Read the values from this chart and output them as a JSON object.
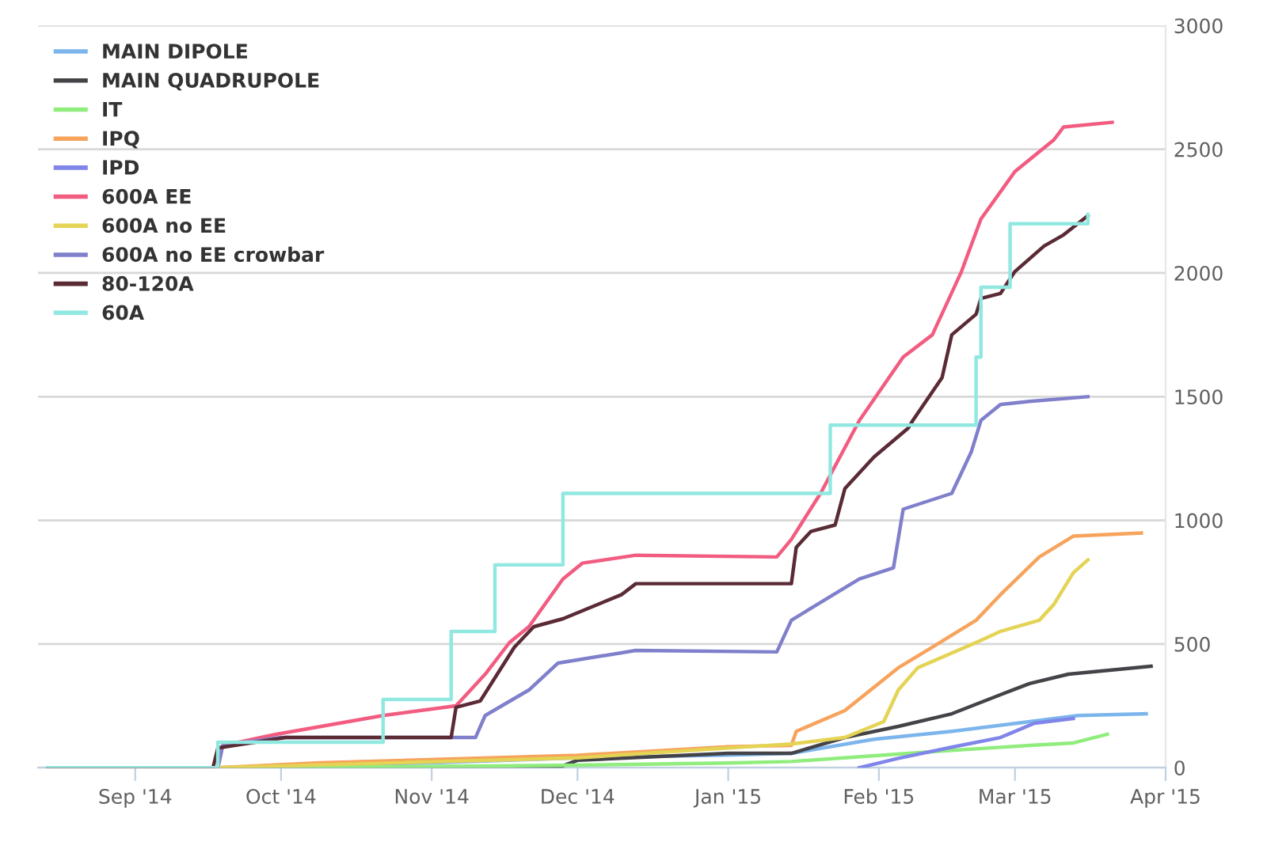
{
  "chart_data": {
    "type": "line",
    "xlim": [
      "2014-08-12",
      "2015-04-01"
    ],
    "ylim": [
      0,
      3000
    ],
    "yticks": [
      0,
      500,
      1000,
      1500,
      2000,
      2500,
      3000
    ],
    "xticks": [
      {
        "value": "2014-09-01",
        "label": "Sep '14"
      },
      {
        "value": "2014-10-01",
        "label": "Oct '14"
      },
      {
        "value": "2014-11-01",
        "label": "Nov '14"
      },
      {
        "value": "2014-12-01",
        "label": "Dec '14"
      },
      {
        "value": "2015-01-01",
        "label": "Jan '15"
      },
      {
        "value": "2015-02-01",
        "label": "Feb '15"
      },
      {
        "value": "2015-03-01",
        "label": "Mar '15"
      },
      {
        "value": "2015-04-01",
        "label": "Apr '15"
      }
    ],
    "grid": "y",
    "legend": "top left",
    "marker": "none",
    "line_style": "solid",
    "series": [
      {
        "name": "MAIN DIPOLE",
        "color": "#7cb5ec",
        "x": [
          "2014-08-14",
          "2014-09-18",
          "2014-11-01",
          "2014-12-01",
          "2015-01-01",
          "2015-01-14",
          "2015-01-31",
          "2015-02-16",
          "2015-03-04",
          "2015-03-14",
          "2015-03-28"
        ],
        "values": [
          0,
          0,
          20,
          40,
          51,
          58,
          115,
          147,
          186,
          211,
          218
        ]
      },
      {
        "name": "MAIN QUADRUPOLE",
        "color": "#434348",
        "x": [
          "2014-08-14",
          "2014-11-27",
          "2014-12-01",
          "2015-01-01",
          "2015-01-14",
          "2015-01-25",
          "2015-02-05",
          "2015-02-16",
          "2015-02-26",
          "2015-03-04",
          "2015-03-12",
          "2015-03-29"
        ],
        "values": [
          0,
          0,
          30,
          58,
          58,
          122,
          167,
          218,
          295,
          340,
          378,
          410
        ]
      },
      {
        "name": "IT",
        "color": "#90ed7d",
        "x": [
          "2014-08-14",
          "2014-10-01",
          "2014-12-01",
          "2015-01-01",
          "2015-01-14",
          "2015-02-16",
          "2015-03-04",
          "2015-03-13",
          "2015-03-20"
        ],
        "values": [
          0,
          0,
          10,
          19,
          25,
          70,
          90,
          100,
          135
        ]
      },
      {
        "name": "IPQ",
        "color": "#f7a35c",
        "x": [
          "2014-08-14",
          "2014-09-18",
          "2014-10-09",
          "2014-12-01",
          "2015-01-01",
          "2015-01-14",
          "2015-01-15",
          "2015-01-25",
          "2015-02-05",
          "2015-02-12",
          "2015-02-21",
          "2015-02-26",
          "2015-03-06",
          "2015-03-13",
          "2015-03-27"
        ],
        "values": [
          0,
          0,
          20,
          50,
          85,
          90,
          147,
          231,
          404,
          487,
          596,
          699,
          852,
          936,
          949
        ]
      },
      {
        "name": "IPD",
        "color": "#8085e9",
        "x": [
          "2015-01-28",
          "2015-02-05",
          "2015-02-16",
          "2015-02-26",
          "2015-03-05",
          "2015-03-13"
        ],
        "values": [
          0,
          38,
          83,
          122,
          180,
          199
        ]
      },
      {
        "name": "600A EE",
        "color": "#f15c80",
        "x": [
          "2014-08-14",
          "2014-09-18",
          "2014-09-19",
          "2014-09-30",
          "2014-10-22",
          "2014-11-06",
          "2014-11-12",
          "2014-11-17",
          "2014-11-21",
          "2014-11-28",
          "2014-12-02",
          "2014-12-13",
          "2015-01-11",
          "2015-01-14",
          "2015-01-20",
          "2015-01-28",
          "2015-02-06",
          "2015-02-12",
          "2015-02-18",
          "2015-02-22",
          "2015-03-01",
          "2015-03-09",
          "2015-03-11",
          "2015-03-21"
        ],
        "values": [
          0,
          0,
          90,
          135,
          211,
          250,
          378,
          506,
          570,
          763,
          827,
          859,
          852,
          923,
          1109,
          1404,
          1660,
          1750,
          2006,
          2218,
          2410,
          2538,
          2590,
          2609
        ]
      },
      {
        "name": "600A no EE",
        "color": "#e4d354",
        "x": [
          "2014-08-14",
          "2014-09-18",
          "2014-12-01",
          "2015-01-01",
          "2015-01-14",
          "2015-01-25",
          "2015-02-02",
          "2015-02-05",
          "2015-02-09",
          "2015-02-21",
          "2015-02-26",
          "2015-03-06",
          "2015-03-09",
          "2015-03-13",
          "2015-03-16"
        ],
        "values": [
          0,
          0,
          40,
          80,
          96,
          122,
          186,
          314,
          404,
          506,
          551,
          596,
          660,
          788,
          840
        ]
      },
      {
        "name": "600A no EE crowbar",
        "color": "#7f7fcc",
        "x": [
          "2014-08-14",
          "2014-09-18",
          "2014-09-19",
          "2014-10-01",
          "2014-11-10",
          "2014-11-12",
          "2014-11-21",
          "2014-11-27",
          "2014-12-13",
          "2015-01-11",
          "2015-01-14",
          "2015-01-21",
          "2015-01-28",
          "2015-02-04",
          "2015-02-06",
          "2015-02-16",
          "2015-02-20",
          "2015-02-22",
          "2015-02-26",
          "2015-03-04",
          "2015-03-16"
        ],
        "values": [
          0,
          0,
          90,
          122,
          122,
          211,
          314,
          423,
          474,
          468,
          596,
          680,
          763,
          808,
          1045,
          1109,
          1276,
          1404,
          1468,
          1481,
          1500
        ]
      },
      {
        "name": "80-120A",
        "color": "#5a2a35",
        "x": [
          "2014-08-14",
          "2014-09-17",
          "2014-09-18",
          "2014-10-02",
          "2014-11-05",
          "2014-11-06",
          "2014-11-11",
          "2014-11-18",
          "2014-11-22",
          "2014-11-28",
          "2014-12-10",
          "2014-12-13",
          "2015-01-14",
          "2015-01-15",
          "2015-01-18",
          "2015-01-23",
          "2015-01-25",
          "2015-01-31",
          "2015-02-07",
          "2015-02-08",
          "2015-02-14",
          "2015-02-16",
          "2015-02-21",
          "2015-02-22",
          "2015-02-26",
          "2015-03-01",
          "2015-03-07",
          "2015-03-11",
          "2015-03-16"
        ],
        "values": [
          0,
          0,
          80,
          122,
          122,
          244,
          270,
          487,
          570,
          602,
          699,
          744,
          744,
          891,
          955,
          981,
          1128,
          1256,
          1372,
          1404,
          1577,
          1750,
          1833,
          1897,
          1917,
          2006,
          2109,
          2154,
          2231
        ]
      },
      {
        "name": "60A",
        "color": "#91e8e1",
        "type": "step",
        "x": [
          "2014-08-14",
          "2014-09-18",
          "2014-10-22",
          "2014-11-05",
          "2014-11-14",
          "2014-11-28",
          "2015-01-22",
          "2015-02-21",
          "2015-02-22",
          "2015-02-28",
          "2015-03-16"
        ],
        "values": [
          0,
          103,
          276,
          551,
          820,
          1109,
          1385,
          1660,
          1942,
          2199,
          2237
        ]
      }
    ]
  }
}
